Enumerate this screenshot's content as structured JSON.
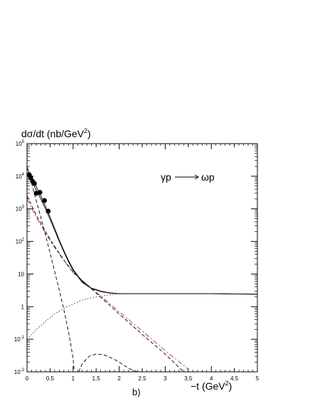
{
  "chart_data": {
    "type": "line",
    "title": "",
    "ylabel": "dσ/dt (nb/GeV",
    "ylabel_sup": "2",
    "ylabel_close": ")",
    "xlabel": "−t (GeV",
    "xlabel_sup": "2",
    "xlabel_close": ")",
    "panel_label": "b)",
    "annotation": {
      "prefix": "γp",
      "suffix": "ωp"
    },
    "xlim": [
      0,
      5
    ],
    "ylim": [
      0.01,
      100000
    ],
    "y_scale": "log",
    "grid": false,
    "x_ticks": [
      {
        "v": 0,
        "label": "0"
      },
      {
        "v": 0.5,
        "label": "0.5"
      },
      {
        "v": 1,
        "label": "1"
      },
      {
        "v": 1.5,
        "label": "1.5"
      },
      {
        "v": 2,
        "label": "2"
      },
      {
        "v": 2.5,
        "label": "2.5"
      },
      {
        "v": 3,
        "label": "3"
      },
      {
        "v": 3.5,
        "label": "3.5"
      },
      {
        "v": 4,
        "label": "4"
      },
      {
        "v": 4.5,
        "label": "4.5"
      },
      {
        "v": 5,
        "label": "5"
      }
    ],
    "y_ticks": [
      {
        "v": 0.01,
        "base": "10",
        "exp": "-2"
      },
      {
        "v": 0.1,
        "base": "10",
        "exp": "-1"
      },
      {
        "v": 1,
        "base": "1",
        "exp": ""
      },
      {
        "v": 10,
        "base": "10",
        "exp": ""
      },
      {
        "v": 100,
        "base": "10",
        "exp": "2"
      },
      {
        "v": 1000,
        "base": "10",
        "exp": "3"
      },
      {
        "v": 10000,
        "base": "10",
        "exp": "4"
      },
      {
        "v": 100000,
        "base": "10",
        "exp": "5"
      }
    ],
    "series": [
      {
        "style": "solid",
        "color": "#000000",
        "x": [
          0.0,
          0.1,
          0.2,
          0.3,
          0.4,
          0.5,
          0.6,
          0.7,
          0.8,
          0.9,
          1.0,
          1.2,
          1.4,
          1.6,
          1.8,
          2.0,
          2.3,
          2.6,
          3.0,
          3.5,
          4.0,
          4.5,
          5.0
        ],
        "y": [
          13000,
          7000,
          3800,
          2000,
          1000,
          480,
          220,
          100,
          48,
          24,
          13,
          5.5,
          3.6,
          2.9,
          2.6,
          2.5,
          2.5,
          2.5,
          2.5,
          2.5,
          2.5,
          2.45,
          2.4
        ]
      },
      {
        "style": "solid",
        "color": "#000000",
        "x": [
          0.0,
          0.1,
          0.2,
          0.3,
          0.4,
          0.5,
          0.6,
          0.7,
          0.8,
          0.9,
          1.0,
          1.2,
          1.4,
          1.6,
          1.8,
          2.0,
          2.3,
          2.6,
          3.0,
          3.5,
          4.0,
          4.5,
          5.0
        ],
        "y": [
          18000,
          9000,
          4800,
          2500,
          1200,
          560,
          250,
          110,
          52,
          26,
          14,
          5.8,
          3.7,
          3.0,
          2.65,
          2.5,
          2.5,
          2.5,
          2.5,
          2.5,
          2.5,
          2.45,
          2.4
        ]
      },
      {
        "style": "dashdot",
        "color": "#b0304a",
        "x": [
          0.0,
          0.2,
          0.4,
          0.6,
          0.8,
          1.0,
          1.5,
          2.0,
          2.5,
          3.0,
          3.5
        ],
        "y": [
          2000,
          550,
          180,
          65,
          26,
          11,
          2.8,
          0.7,
          0.18,
          0.045,
          0.012
        ]
      },
      {
        "style": "dashed",
        "color": "#000000",
        "x": [
          0.0,
          0.2,
          0.4,
          0.6,
          0.8,
          1.0,
          1.5,
          2.0,
          2.5,
          3.0,
          3.4
        ],
        "y": [
          2500,
          640,
          200,
          70,
          27,
          11.5,
          2.6,
          0.6,
          0.14,
          0.035,
          0.01
        ]
      },
      {
        "style": "dashed",
        "color": "#000000",
        "x": [
          0.0,
          0.1,
          0.2,
          0.3,
          0.4,
          0.5,
          0.6,
          0.7,
          0.8,
          0.9,
          0.95,
          1.0,
          1.02
        ],
        "y": [
          20000,
          6000,
          1800,
          550,
          160,
          45,
          12,
          3.2,
          0.8,
          0.17,
          0.07,
          0.025,
          0.012
        ]
      },
      {
        "style": "dashed",
        "color": "#000000",
        "x": [
          1.12,
          1.2,
          1.35,
          1.5,
          1.65,
          1.8,
          1.95,
          2.1,
          2.25,
          2.4
        ],
        "y": [
          0.01,
          0.018,
          0.03,
          0.035,
          0.034,
          0.028,
          0.022,
          0.016,
          0.012,
          0.01
        ]
      },
      {
        "style": "dotted",
        "color": "#000000",
        "x": [
          0.0,
          0.2,
          0.4,
          0.6,
          0.8,
          1.0,
          1.2,
          1.5,
          1.8,
          2.0,
          2.3,
          2.6,
          3.0,
          3.5,
          4.0,
          4.5,
          5.0
        ],
        "y": [
          0.1,
          0.2,
          0.35,
          0.6,
          0.9,
          1.2,
          1.6,
          2.0,
          2.3,
          2.45,
          2.5,
          2.5,
          2.5,
          2.5,
          2.5,
          2.45,
          2.4
        ]
      }
    ],
    "points": {
      "x": [
        0.05,
        0.08,
        0.12,
        0.16,
        0.2,
        0.28,
        0.38,
        0.46
      ],
      "y": [
        11000,
        9000,
        7000,
        6000,
        3000,
        3200,
        1800,
        850
      ]
    }
  }
}
